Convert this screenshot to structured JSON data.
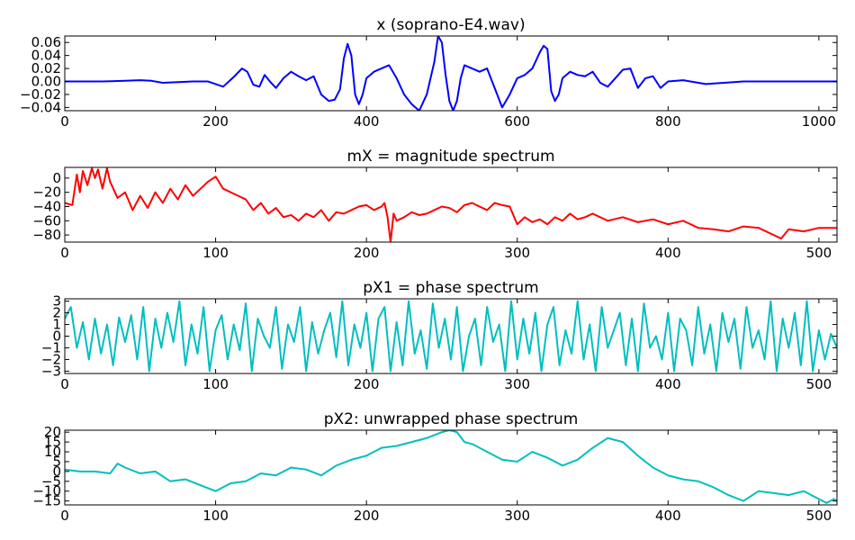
{
  "chart_data": [
    {
      "type": "line",
      "title": "x (soprano-E4.wav)",
      "xlabel": "",
      "ylabel": "",
      "xlim": [
        0,
        1024
      ],
      "ylim": [
        -0.045,
        0.07
      ],
      "xticks": [
        0,
        200,
        400,
        600,
        800,
        1000
      ],
      "yticks": [
        -0.04,
        -0.02,
        0.0,
        0.02,
        0.04,
        0.06
      ],
      "ytick_labels": [
        "−0.04",
        "−0.02",
        "0.00",
        "0.02",
        "0.04",
        "0.06"
      ],
      "grid": false,
      "series": [
        {
          "color": "#0000ff",
          "x": [
            0,
            50,
            80,
            100,
            115,
            130,
            150,
            170,
            190,
            210,
            225,
            235,
            242,
            250,
            258,
            265,
            272,
            280,
            290,
            300,
            310,
            320,
            330,
            340,
            350,
            358,
            365,
            370,
            375,
            380,
            385,
            390,
            395,
            400,
            410,
            420,
            430,
            440,
            450,
            460,
            470,
            480,
            490,
            495,
            500,
            505,
            510,
            515,
            520,
            525,
            530,
            540,
            550,
            560,
            570,
            580,
            590,
            600,
            610,
            620,
            630,
            635,
            640,
            645,
            650,
            655,
            660,
            670,
            680,
            690,
            700,
            710,
            720,
            730,
            740,
            750,
            760,
            770,
            780,
            790,
            800,
            820,
            850,
            900,
            950,
            1024
          ],
          "y": [
            0,
            0,
            0.001,
            0.002,
            0.001,
            -0.002,
            -0.001,
            0,
            0,
            -0.008,
            0.008,
            0.02,
            0.015,
            -0.005,
            -0.008,
            0.01,
            0,
            -0.01,
            0.005,
            0.015,
            0.008,
            0.002,
            0.008,
            -0.02,
            -0.03,
            -0.028,
            -0.012,
            0.035,
            0.058,
            0.04,
            -0.02,
            -0.035,
            -0.02,
            0.005,
            0.015,
            0.02,
            0.025,
            0.005,
            -0.02,
            -0.035,
            -0.045,
            -0.02,
            0.03,
            0.07,
            0.06,
            0.01,
            -0.03,
            -0.045,
            -0.03,
            0.005,
            0.025,
            0.02,
            0.015,
            0.02,
            -0.01,
            -0.04,
            -0.02,
            0.005,
            0.01,
            0.02,
            0.045,
            0.055,
            0.05,
            -0.015,
            -0.03,
            -0.02,
            0.005,
            0.015,
            0.01,
            0.008,
            0.015,
            -0.002,
            -0.008,
            0.005,
            0.018,
            0.02,
            -0.01,
            0.005,
            0.008,
            -0.01,
            0,
            0.002,
            -0.004,
            0,
            0,
            0
          ]
        }
      ]
    },
    {
      "type": "line",
      "title": "mX = magnitude spectrum",
      "xlabel": "",
      "ylabel": "",
      "xlim": [
        0,
        512
      ],
      "ylim": [
        -90,
        15
      ],
      "xticks": [
        0,
        100,
        200,
        300,
        400,
        500
      ],
      "yticks": [
        -80,
        -60,
        -40,
        -20,
        0
      ],
      "ytick_labels": [
        "−80",
        "−60",
        "−40",
        "−20",
        "0"
      ],
      "grid": false,
      "series": [
        {
          "color": "#ff0000",
          "x": [
            0,
            5,
            8,
            10,
            12,
            15,
            18,
            20,
            22,
            25,
            28,
            30,
            35,
            40,
            45,
            50,
            55,
            60,
            65,
            70,
            75,
            80,
            85,
            90,
            95,
            100,
            105,
            110,
            115,
            120,
            125,
            130,
            135,
            140,
            145,
            150,
            155,
            160,
            165,
            170,
            175,
            180,
            185,
            190,
            195,
            200,
            205,
            210,
            212,
            214,
            216,
            218,
            220,
            225,
            230,
            235,
            240,
            245,
            250,
            255,
            260,
            265,
            270,
            275,
            280,
            285,
            290,
            295,
            300,
            305,
            310,
            315,
            320,
            325,
            330,
            335,
            340,
            345,
            350,
            360,
            370,
            380,
            390,
            400,
            410,
            420,
            430,
            440,
            450,
            460,
            470,
            475,
            480,
            490,
            500,
            512
          ],
          "y": [
            -35,
            -38,
            5,
            -20,
            10,
            -10,
            14,
            0,
            12,
            -15,
            14,
            -5,
            -28,
            -20,
            -45,
            -25,
            -42,
            -20,
            -35,
            -15,
            -30,
            -10,
            -25,
            -15,
            -5,
            2,
            -15,
            -20,
            -25,
            -30,
            -45,
            -35,
            -50,
            -42,
            -55,
            -52,
            -60,
            -50,
            -55,
            -45,
            -60,
            -48,
            -50,
            -45,
            -40,
            -38,
            -45,
            -40,
            -35,
            -55,
            -90,
            -50,
            -60,
            -55,
            -48,
            -52,
            -50,
            -45,
            -40,
            -42,
            -48,
            -38,
            -35,
            -40,
            -45,
            -35,
            -38,
            -40,
            -65,
            -55,
            -62,
            -58,
            -65,
            -55,
            -60,
            -50,
            -58,
            -55,
            -50,
            -60,
            -55,
            -62,
            -58,
            -65,
            -60,
            -70,
            -72,
            -75,
            -68,
            -70,
            -80,
            -85,
            -72,
            -75,
            -70,
            -70
          ]
        }
      ]
    },
    {
      "type": "line",
      "title": "pX1 = phase spectrum",
      "xlabel": "",
      "ylabel": "",
      "xlim": [
        0,
        512
      ],
      "ylim": [
        -3.2,
        3.2
      ],
      "xticks": [
        0,
        100,
        200,
        300,
        400,
        500
      ],
      "yticks": [
        -3,
        -2,
        -1,
        0,
        1,
        2,
        3
      ],
      "ytick_labels": [
        "−3",
        "−2",
        "−1",
        "0",
        "1",
        "2",
        "3"
      ],
      "grid": false,
      "note_series": "wrapped phase, values bounded in [-pi, pi]",
      "series": [
        {
          "color": "#00bfbf",
          "x": [
            0,
            4,
            8,
            12,
            16,
            20,
            24,
            28,
            32,
            36,
            40,
            44,
            48,
            52,
            56,
            60,
            64,
            68,
            72,
            76,
            80,
            84,
            88,
            92,
            96,
            100,
            104,
            108,
            112,
            116,
            120,
            124,
            128,
            132,
            136,
            140,
            144,
            148,
            152,
            156,
            160,
            164,
            168,
            172,
            176,
            180,
            184,
            188,
            192,
            196,
            200,
            204,
            208,
            212,
            216,
            220,
            224,
            228,
            232,
            236,
            240,
            244,
            248,
            252,
            256,
            260,
            264,
            268,
            272,
            276,
            280,
            284,
            288,
            292,
            296,
            300,
            304,
            308,
            312,
            316,
            320,
            324,
            328,
            332,
            336,
            340,
            344,
            348,
            352,
            356,
            360,
            364,
            368,
            372,
            376,
            380,
            384,
            388,
            392,
            396,
            400,
            404,
            408,
            412,
            416,
            420,
            424,
            428,
            432,
            436,
            440,
            444,
            448,
            452,
            456,
            460,
            464,
            468,
            472,
            476,
            480,
            484,
            488,
            492,
            496,
            500,
            504,
            508,
            512
          ],
          "y": [
            1.5,
            2.5,
            -1.0,
            1.2,
            -2.0,
            1.5,
            -1.5,
            1.0,
            -2.5,
            1.6,
            -0.5,
            1.8,
            -2.0,
            2.5,
            -3.0,
            1.5,
            -1.0,
            2.0,
            -0.5,
            3.0,
            -2.5,
            1.0,
            -1.5,
            2.5,
            -3.0,
            0.5,
            1.8,
            -2.0,
            1.0,
            -1.2,
            2.8,
            -3.0,
            1.5,
            0.0,
            -1.0,
            2.5,
            -2.8,
            1.0,
            -0.5,
            2.5,
            -3.0,
            1.2,
            -1.5,
            0.5,
            2.0,
            -1.8,
            3.0,
            -2.5,
            1.0,
            -1.0,
            2.0,
            -3.0,
            1.5,
            2.5,
            -3.0,
            1.2,
            -2.5,
            3.0,
            -1.5,
            0.5,
            -2.8,
            2.8,
            -1.0,
            1.5,
            -2.0,
            2.5,
            -3.0,
            0.0,
            1.5,
            -2.5,
            2.5,
            -0.5,
            1.0,
            -3.0,
            3.0,
            -2.0,
            1.5,
            -1.5,
            2.0,
            -3.0,
            1.0,
            2.5,
            -2.5,
            0.5,
            -1.5,
            3.0,
            -2.0,
            1.0,
            -3.0,
            2.5,
            -1.0,
            0.5,
            2.0,
            -2.5,
            1.5,
            -3.0,
            2.8,
            -1.0,
            0.0,
            -2.0,
            2.0,
            -3.0,
            1.5,
            0.5,
            -2.5,
            2.5,
            -1.5,
            1.0,
            -3.0,
            2.0,
            -0.5,
            1.5,
            -2.8,
            2.5,
            -1.0,
            0.5,
            -2.0,
            3.0,
            -3.0,
            1.5,
            -1.0,
            2.0,
            -2.5,
            3.0,
            -3.0,
            0.5,
            -2.0,
            0.2,
            -1.0
          ]
        }
      ]
    },
    {
      "type": "line",
      "title": "pX2: unwrapped phase spectrum",
      "xlabel": "",
      "ylabel": "",
      "xlim": [
        0,
        512
      ],
      "ylim": [
        -17,
        21
      ],
      "xticks": [
        0,
        100,
        200,
        300,
        400,
        500
      ],
      "yticks": [
        -15,
        -10,
        -5,
        0,
        5,
        10,
        15,
        20
      ],
      "ytick_labels": [
        "−15",
        "−10",
        "−5",
        "0",
        "5",
        "10",
        "15",
        "20"
      ],
      "grid": false,
      "series": [
        {
          "color": "#00bfbf",
          "x": [
            0,
            10,
            20,
            30,
            35,
            40,
            50,
            60,
            70,
            80,
            90,
            100,
            110,
            120,
            130,
            140,
            150,
            160,
            170,
            180,
            190,
            200,
            210,
            220,
            230,
            240,
            250,
            255,
            260,
            265,
            270,
            280,
            290,
            300,
            310,
            320,
            330,
            340,
            350,
            360,
            370,
            380,
            390,
            400,
            410,
            420,
            430,
            440,
            450,
            460,
            470,
            480,
            490,
            500,
            505,
            510,
            512
          ],
          "y": [
            1,
            0,
            0,
            -1,
            4,
            2,
            -1,
            0,
            -5,
            -4,
            -7,
            -10,
            -6,
            -5,
            -1,
            -2,
            2,
            1,
            -2,
            3,
            6,
            8,
            12,
            13,
            15,
            17,
            20,
            21,
            20,
            15,
            14,
            10,
            6,
            5,
            10,
            7,
            3,
            6,
            12,
            17,
            15,
            8,
            2,
            -2,
            -4,
            -5,
            -8,
            -12,
            -15,
            -10,
            -11,
            -12,
            -10,
            -14,
            -16,
            -14,
            -15
          ]
        }
      ]
    }
  ]
}
